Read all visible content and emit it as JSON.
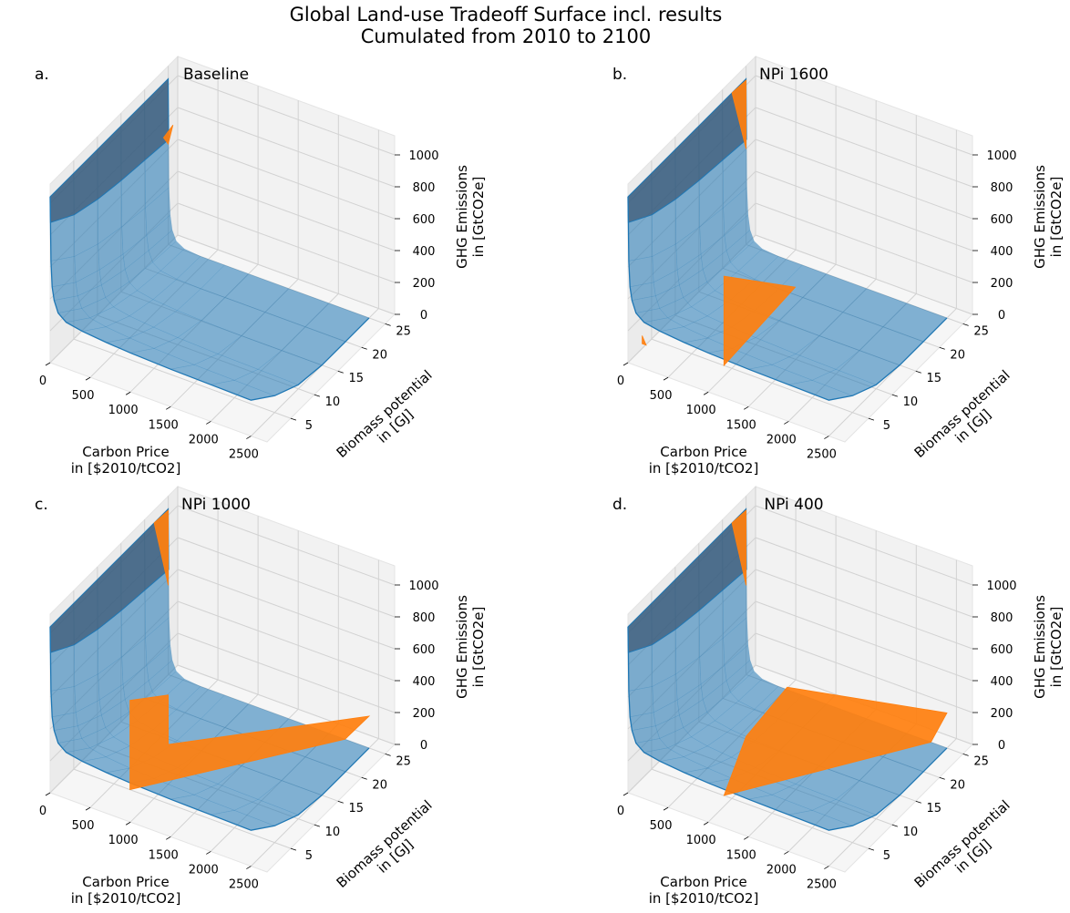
{
  "title": "Global Land-use Tradeoff Surface incl. results\nCumulated from 2010 to 2100",
  "title_lines": [
    "Global Land-use Tradeoff Surface incl. results",
    "Cumulated from 2010 to 2100"
  ],
  "colors": {
    "surface": "#1f77b4",
    "result": "#ff7f0e",
    "pane": "#f2f2f2",
    "grid": "#d2d2d2"
  },
  "chart_data": [
    {
      "type": "surface3d",
      "panel_label": "a.",
      "title": "Baseline",
      "xlabel": "Carbon Price\nin [$2010/tCO2]",
      "ylabel": "Biomass potential\nin [GJ]",
      "zlabel": "GHG Emissions\nin [GtCO2e]",
      "xticks": [
        "0",
        "500",
        "1000",
        "1500",
        "2000",
        "2500"
      ],
      "yticks": [
        "5",
        "10",
        "15",
        "20",
        "25"
      ],
      "zticks": [
        "0",
        "200",
        "400",
        "600",
        "800",
        "1000"
      ],
      "xlim": [
        0,
        2700
      ],
      "ylim": [
        0,
        27
      ],
      "zlim": [
        0,
        1000
      ],
      "series": [
        {
          "kind": "tradeoff-surface",
          "color": "#1f77b4",
          "carbon_price": [
            0,
            5,
            10,
            25,
            50,
            100,
            200,
            400,
            700,
            1000,
            1500,
            2000,
            2500
          ],
          "biomass": [
            0,
            5,
            10,
            15,
            20,
            25
          ],
          "emissions_by_biomass": [
            [
              1040,
              880,
              640,
              480,
              400,
              330,
              290,
              270,
              255,
              245,
              235,
              230,
              225
            ],
            [
              1040,
              780,
              520,
              360,
              280,
              210,
              170,
              150,
              135,
              125,
              115,
              110,
              105
            ],
            [
              1040,
              730,
              450,
              290,
              200,
              130,
              90,
              70,
              55,
              45,
              35,
              30,
              25
            ],
            [
              1040,
              700,
              410,
              240,
              150,
              80,
              45,
              25,
              12,
              5,
              0,
              0,
              0
            ],
            [
              1040,
              680,
              380,
              210,
              120,
              55,
              20,
              5,
              0,
              0,
              0,
              0,
              0
            ],
            [
              1040,
              660,
              360,
              190,
              100,
              40,
              10,
              0,
              0,
              0,
              0,
              0,
              0
            ]
          ]
        }
      ],
      "result_patches": [
        {
          "name": "",
          "points": [
            [
              0,
              25,
              630
            ],
            [
              0,
              24,
              700
            ],
            [
              0,
              26,
              720
            ]
          ]
        }
      ]
    },
    {
      "type": "surface3d",
      "panel_label": "b.",
      "title": "NPi 1600",
      "xlabel": "Carbon Price\nin [$2010/tCO2]",
      "ylabel": "Biomass potential\nin [GJ]",
      "zlabel": "GHG Emissions\nin [GtCO2e]",
      "xticks": [
        "0",
        "500",
        "1000",
        "1500",
        "2000",
        "2500"
      ],
      "yticks": [
        "5",
        "10",
        "15",
        "20",
        "25"
      ],
      "zticks": [
        "0",
        "200",
        "400",
        "600",
        "800",
        "1000"
      ],
      "xlim": [
        0,
        2700
      ],
      "ylim": [
        0,
        27
      ],
      "zlim": [
        0,
        1000
      ],
      "series": [
        {
          "kind": "tradeoff-surface",
          "color": "#1f77b4",
          "carbon_price": [
            0,
            5,
            10,
            25,
            50,
            100,
            200,
            400,
            700,
            1000,
            1500,
            2000,
            2500
          ],
          "biomass": [
            0,
            5,
            10,
            15,
            20,
            25
          ],
          "emissions_by_biomass": [
            [
              1040,
              880,
              640,
              480,
              400,
              330,
              290,
              270,
              255,
              245,
              235,
              230,
              225
            ],
            [
              1040,
              780,
              520,
              360,
              280,
              210,
              170,
              150,
              135,
              125,
              115,
              110,
              105
            ],
            [
              1040,
              730,
              450,
              290,
              200,
              130,
              90,
              70,
              55,
              45,
              35,
              30,
              25
            ],
            [
              1040,
              700,
              410,
              240,
              150,
              80,
              45,
              25,
              12,
              5,
              0,
              0,
              0
            ],
            [
              1040,
              680,
              380,
              210,
              120,
              55,
              20,
              5,
              0,
              0,
              0,
              0,
              0
            ],
            [
              1040,
              660,
              360,
              190,
              100,
              40,
              10,
              0,
              0,
              0,
              0,
              0,
              0
            ]
          ]
        }
      ],
      "result_patches": [
        {
          "name": "",
          "points": [
            [
              0,
              25,
              600
            ],
            [
              0,
              25,
              1030
            ],
            [
              0,
              22,
              1040
            ]
          ]
        },
        {
          "name": "",
          "points": [
            [
              0,
              3,
              80
            ],
            [
              0,
              3,
              30
            ],
            [
              50,
              3,
              30
            ]
          ]
        },
        {
          "name": "",
          "points": [
            [
              900,
              5,
              0
            ],
            [
              900,
              5,
              560
            ],
            [
              1200,
              15,
              250
            ]
          ]
        }
      ]
    },
    {
      "type": "surface3d",
      "panel_label": "c.",
      "title": "NPi 1000",
      "xlabel": "Carbon Price\nin [$2010/tCO2]",
      "ylabel": "Biomass potential\nin [GJ]",
      "zlabel": "GHG Emissions\nin [GtCO2e]",
      "xticks": [
        "0",
        "500",
        "1000",
        "1500",
        "2000",
        "2500"
      ],
      "yticks": [
        "5",
        "10",
        "15",
        "20",
        "25"
      ],
      "zticks": [
        "0",
        "200",
        "400",
        "600",
        "800",
        "1000"
      ],
      "xlim": [
        0,
        2700
      ],
      "ylim": [
        0,
        27
      ],
      "zlim": [
        0,
        1000
      ],
      "series": [
        {
          "kind": "tradeoff-surface",
          "color": "#1f77b4",
          "carbon_price": [
            0,
            5,
            10,
            25,
            50,
            100,
            200,
            400,
            700,
            1000,
            1500,
            2000,
            2500
          ],
          "biomass": [
            0,
            5,
            10,
            15,
            20,
            25
          ],
          "emissions_by_biomass": [
            [
              1040,
              880,
              640,
              480,
              400,
              330,
              290,
              270,
              255,
              245,
              235,
              230,
              225
            ],
            [
              1040,
              780,
              520,
              360,
              280,
              210,
              170,
              150,
              135,
              125,
              115,
              110,
              105
            ],
            [
              1040,
              730,
              450,
              290,
              200,
              130,
              90,
              70,
              55,
              45,
              35,
              30,
              25
            ],
            [
              1040,
              700,
              410,
              240,
              150,
              80,
              45,
              25,
              12,
              5,
              0,
              0,
              0
            ],
            [
              1040,
              680,
              380,
              210,
              120,
              55,
              20,
              5,
              0,
              0,
              0,
              0,
              0
            ],
            [
              1040,
              660,
              360,
              190,
              100,
              40,
              10,
              0,
              0,
              0,
              0,
              0,
              0
            ]
          ]
        }
      ],
      "result_patches": [
        {
          "name": "",
          "points": [
            [
              0,
              25,
              560
            ],
            [
              0,
              25,
              1030
            ],
            [
              0,
              22,
              1040
            ]
          ]
        },
        {
          "name": "",
          "points": [
            [
              700,
              5,
              0
            ],
            [
              700,
              5,
              560
            ],
            [
              1000,
              8,
              560
            ],
            [
              1000,
              8,
              250
            ],
            [
              2500,
              25,
              200
            ],
            [
              2200,
              25,
              0
            ]
          ]
        }
      ]
    },
    {
      "type": "surface3d",
      "panel_label": "d.",
      "title": "NPi 400",
      "xlabel": "Carbon Price\nin [$2010/tCO2]",
      "ylabel": "Biomass potential\nin [GJ]",
      "zlabel": "GHG Emissions\nin [GtCO2e]",
      "xticks": [
        "0",
        "500",
        "1000",
        "1500",
        "2000",
        "2500"
      ],
      "yticks": [
        "5",
        "10",
        "15",
        "20",
        "25"
      ],
      "zticks": [
        "0",
        "200",
        "400",
        "600",
        "800",
        "1000"
      ],
      "xlim": [
        0,
        2700
      ],
      "ylim": [
        0,
        27
      ],
      "zlim": [
        0,
        1000
      ],
      "series": [
        {
          "kind": "tradeoff-surface",
          "color": "#1f77b4",
          "carbon_price": [
            0,
            5,
            10,
            25,
            50,
            100,
            200,
            400,
            700,
            1000,
            1500,
            2000,
            2500
          ],
          "biomass": [
            0,
            5,
            10,
            15,
            20,
            25
          ],
          "emissions_by_biomass": [
            [
              1040,
              880,
              640,
              480,
              400,
              330,
              290,
              270,
              255,
              245,
              235,
              230,
              225
            ],
            [
              1040,
              780,
              520,
              360,
              280,
              210,
              170,
              150,
              135,
              125,
              115,
              110,
              105
            ],
            [
              1040,
              730,
              450,
              290,
              200,
              130,
              90,
              70,
              55,
              45,
              35,
              30,
              25
            ],
            [
              1040,
              700,
              410,
              240,
              150,
              80,
              45,
              25,
              12,
              5,
              0,
              0,
              0
            ],
            [
              1040,
              680,
              380,
              210,
              120,
              55,
              20,
              5,
              0,
              0,
              0,
              0,
              0
            ],
            [
              1040,
              660,
              360,
              190,
              100,
              40,
              10,
              0,
              0,
              0,
              0,
              0,
              0
            ]
          ]
        }
      ],
      "result_patches": [
        {
          "name": "",
          "points": [
            [
              0,
              25,
              560
            ],
            [
              0,
              25,
              1030
            ],
            [
              0,
              22,
              1040
            ]
          ]
        },
        {
          "name": "",
          "points": [
            [
              900,
              5,
              0
            ],
            [
              1000,
              8,
              300
            ],
            [
              1100,
              15,
              420
            ],
            [
              2500,
              25,
              220
            ],
            [
              2300,
              25,
              0
            ]
          ]
        }
      ]
    }
  ]
}
